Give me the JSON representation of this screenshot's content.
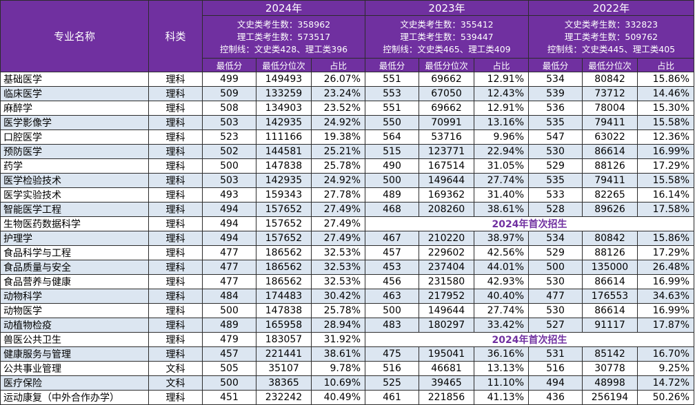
{
  "header": {
    "major_label": "专业名称",
    "category_label": "科类",
    "years": [
      {
        "year": "2024年",
        "info": [
          "文史类考生数：358962",
          "理工类考生数：573517",
          "控制线：文史类428、理工类396"
        ]
      },
      {
        "year": "2023年",
        "info": [
          "文史类考生数：355412",
          "理工类考生数：539447",
          "控制线：文史类465、理工类409"
        ]
      },
      {
        "year": "2022年",
        "info": [
          "文史类考生数：332823",
          "理工类考生数：509762",
          "控制线：文史类445、理工类405"
        ]
      }
    ],
    "sub": [
      "最低分",
      "最低分位次",
      "占比"
    ]
  },
  "first_recruit_text": "2024年首次招生",
  "rows": [
    {
      "major": "基础医学",
      "cat": "理科",
      "y": [
        [
          "499",
          "149493",
          "26.07%"
        ],
        [
          "551",
          "69662",
          "12.91%"
        ],
        [
          "534",
          "80842",
          "15.86%"
        ]
      ]
    },
    {
      "major": "临床医学",
      "cat": "理科",
      "y": [
        [
          "509",
          "133259",
          "23.24%"
        ],
        [
          "553",
          "67050",
          "12.43%"
        ],
        [
          "539",
          "73712",
          "14.46%"
        ]
      ]
    },
    {
      "major": "麻醉学",
      "cat": "理科",
      "y": [
        [
          "508",
          "134903",
          "23.52%"
        ],
        [
          "551",
          "69662",
          "12.91%"
        ],
        [
          "536",
          "78004",
          "15.30%"
        ]
      ]
    },
    {
      "major": "医学影像学",
      "cat": "理科",
      "y": [
        [
          "503",
          "142935",
          "24.92%"
        ],
        [
          "550",
          "70991",
          "13.16%"
        ],
        [
          "535",
          "79411",
          "15.58%"
        ]
      ]
    },
    {
      "major": "口腔医学",
      "cat": "理科",
      "y": [
        [
          "523",
          "111166",
          "19.38%"
        ],
        [
          "564",
          "53716",
          "9.96%"
        ],
        [
          "547",
          "63022",
          "12.36%"
        ]
      ]
    },
    {
      "major": "预防医学",
      "cat": "理科",
      "y": [
        [
          "502",
          "144581",
          "25.21%"
        ],
        [
          "515",
          "123771",
          "22.94%"
        ],
        [
          "530",
          "86614",
          "16.99%"
        ]
      ]
    },
    {
      "major": "药学",
      "cat": "理科",
      "y": [
        [
          "500",
          "147838",
          "25.78%"
        ],
        [
          "490",
          "167514",
          "31.05%"
        ],
        [
          "529",
          "88126",
          "17.29%"
        ]
      ]
    },
    {
      "major": "医学检验技术",
      "cat": "理科",
      "y": [
        [
          "503",
          "142935",
          "24.92%"
        ],
        [
          "500",
          "149644",
          "27.74%"
        ],
        [
          "535",
          "79411",
          "15.58%"
        ]
      ]
    },
    {
      "major": "医学实验技术",
      "cat": "理科",
      "y": [
        [
          "493",
          "159343",
          "27.78%"
        ],
        [
          "489",
          "169362",
          "31.40%"
        ],
        [
          "533",
          "82265",
          "16.14%"
        ]
      ]
    },
    {
      "major": "智能医学工程",
      "cat": "理科",
      "y": [
        [
          "494",
          "157652",
          "27.49%"
        ],
        [
          "468",
          "208260",
          "38.61%"
        ],
        [
          "528",
          "89626",
          "17.58%"
        ]
      ]
    },
    {
      "major": "生物医药数据科学",
      "cat": "理科",
      "y": [
        [
          "494",
          "157652",
          "27.49%"
        ]
      ],
      "first": true
    },
    {
      "major": "护理学",
      "cat": "理科",
      "y": [
        [
          "494",
          "157652",
          "27.49%"
        ],
        [
          "467",
          "210220",
          "38.97%"
        ],
        [
          "534",
          "80842",
          "15.86%"
        ]
      ]
    },
    {
      "major": "食品科学与工程",
      "cat": "理科",
      "y": [
        [
          "477",
          "186562",
          "32.53%"
        ],
        [
          "457",
          "229602",
          "42.56%"
        ],
        [
          "529",
          "88126",
          "17.29%"
        ]
      ]
    },
    {
      "major": "食品质量与安全",
      "cat": "理科",
      "y": [
        [
          "477",
          "186562",
          "32.53%"
        ],
        [
          "453",
          "237404",
          "44.01%"
        ],
        [
          "500",
          "135000",
          "26.48%"
        ]
      ]
    },
    {
      "major": "食品营养与健康",
      "cat": "理科",
      "y": [
        [
          "477",
          "186562",
          "32.53%"
        ],
        [
          "456",
          "231580",
          "42.93%"
        ],
        [
          "530",
          "86614",
          "16.99%"
        ]
      ]
    },
    {
      "major": "动物科学",
      "cat": "理科",
      "y": [
        [
          "484",
          "174483",
          "30.42%"
        ],
        [
          "463",
          "217952",
          "40.40%"
        ],
        [
          "477",
          "176553",
          "34.63%"
        ]
      ]
    },
    {
      "major": "动物医学",
      "cat": "理科",
      "y": [
        [
          "500",
          "147838",
          "25.78%"
        ],
        [
          "500",
          "149644",
          "27.74%"
        ],
        [
          "530",
          "86614",
          "16.99%"
        ]
      ]
    },
    {
      "major": "动植物检疫",
      "cat": "理科",
      "y": [
        [
          "489",
          "165958",
          "28.94%"
        ],
        [
          "483",
          "180297",
          "33.42%"
        ],
        [
          "527",
          "91117",
          "17.87%"
        ]
      ]
    },
    {
      "major": "兽医公共卫生",
      "cat": "理科",
      "y": [
        [
          "479",
          "183057",
          "31.92%"
        ]
      ],
      "first": true
    },
    {
      "major": "健康服务与管理",
      "cat": "理科",
      "y": [
        [
          "457",
          "221441",
          "38.61%"
        ],
        [
          "475",
          "195041",
          "36.16%"
        ],
        [
          "531",
          "85142",
          "16.70%"
        ]
      ]
    },
    {
      "major": "公共事业管理",
      "cat": "文科",
      "y": [
        [
          "505",
          "35107",
          "9.78%"
        ],
        [
          "516",
          "46681",
          "13.13%"
        ],
        [
          "516",
          "30778",
          "9.25%"
        ]
      ]
    },
    {
      "major": "医疗保险",
      "cat": "文科",
      "y": [
        [
          "500",
          "38365",
          "10.69%"
        ],
        [
          "525",
          "39465",
          "11.10%"
        ],
        [
          "494",
          "48998",
          "14.72%"
        ]
      ]
    },
    {
      "major": "运动康复（中外合作办学）",
      "cat": "理科",
      "y": [
        [
          "451",
          "232242",
          "40.49%"
        ],
        [
          "461",
          "221856",
          "41.13%"
        ],
        [
          "436",
          "256194",
          "50.26%"
        ]
      ]
    }
  ]
}
